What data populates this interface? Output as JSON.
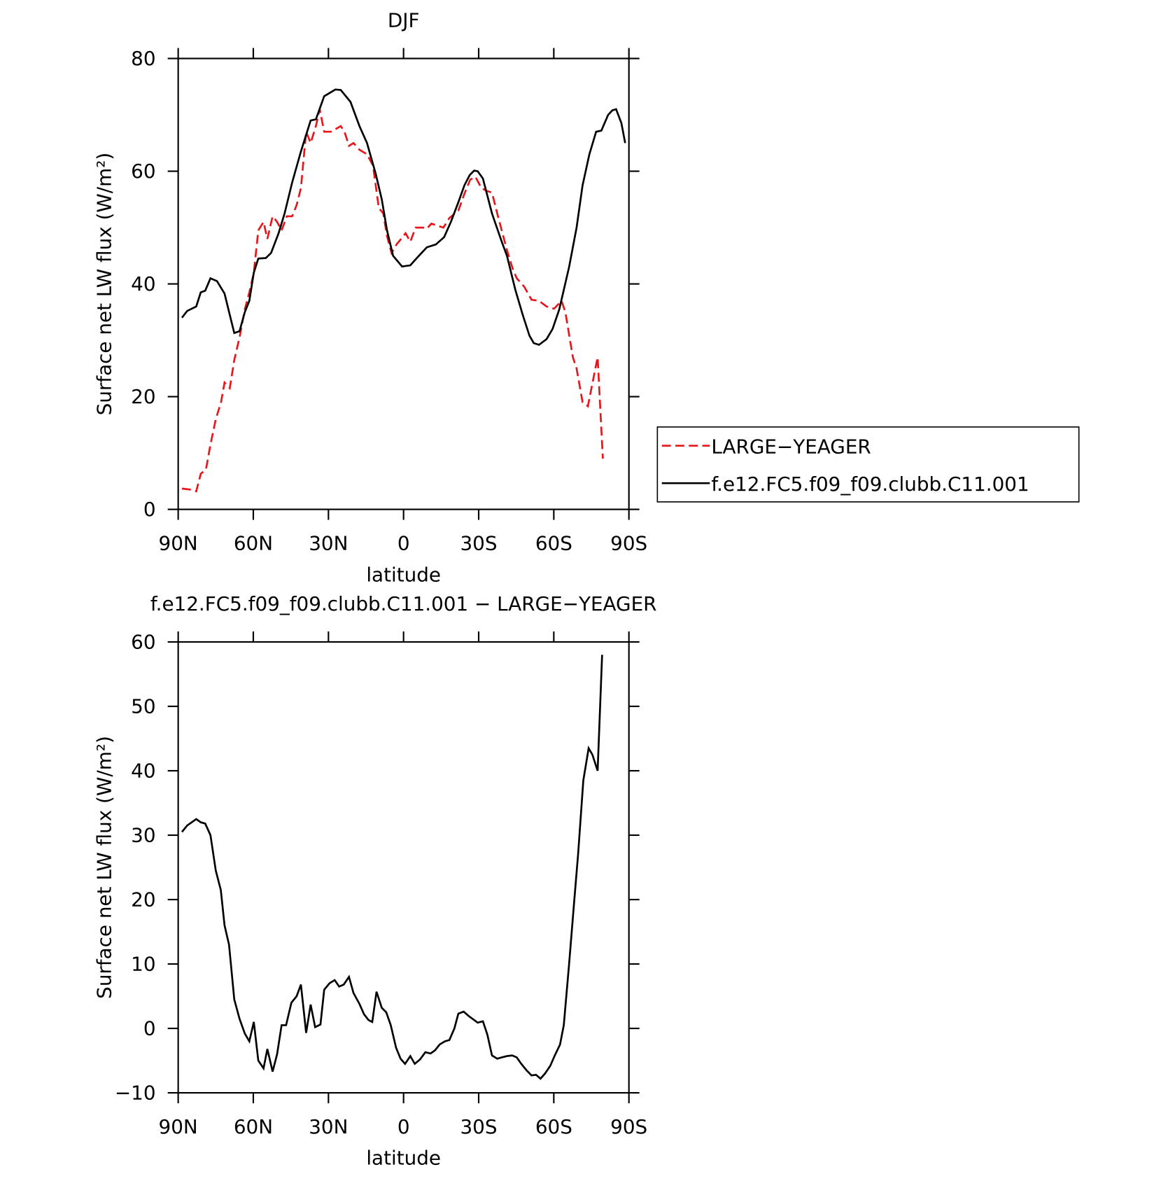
{
  "chart_data": [
    {
      "type": "line",
      "title": "DJF",
      "xlabel": "latitude",
      "ylabel": "Surface net LW flux (W/m²)",
      "xlim": [
        90,
        -90
      ],
      "xticks": [
        {
          "value": 90,
          "label": "90N"
        },
        {
          "value": 60,
          "label": "60N"
        },
        {
          "value": 30,
          "label": "30N"
        },
        0,
        {
          "value": -30,
          "label": "30S"
        },
        {
          "value": -60,
          "label": "60S"
        },
        {
          "value": -90,
          "label": "90S"
        }
      ],
      "ylim": [
        0,
        80
      ],
      "yticks": [
        0,
        20,
        40,
        60,
        80
      ],
      "legend": "right",
      "series": [
        {
          "name": "LARGE−YEAGER",
          "color": "#e8161b",
          "linestyle": "dashed",
          "x": [
            88.5,
            84.9,
            82.8,
            81.0,
            78.9,
            77.1,
            75.0,
            72.9,
            71.5,
            69.4,
            67.6,
            65.5,
            63.4,
            61.6,
            59.8,
            58.0,
            55.9,
            54.4,
            52.3,
            50.5,
            48.7,
            46.6,
            44.5,
            42.7,
            41.0,
            38.9,
            37.1,
            35.0,
            33.5,
            31.7,
            29.0,
            25.1,
            23.6,
            21.8,
            20.0,
            17.6,
            14.6,
            12.2,
            9.9,
            8.1,
            6.6,
            4.8,
            2.8,
            0.4,
            -0.8,
            -2.7,
            -4.8,
            -7.8,
            -9.3,
            -11.1,
            -13.8,
            -15.9,
            -18.3,
            -21.9,
            -24.3,
            -26.6,
            -28.7,
            -31.1,
            -33.2,
            -35.3,
            -37.7,
            -41.3,
            -43.7,
            -45.2,
            -48.2,
            -51.1,
            -54.1,
            -57.1,
            -60.1,
            -63.1,
            -64.6,
            -67.6,
            -69.1,
            -71.5,
            -73.6,
            -75.7,
            -77.5,
            -79.6
          ],
          "values": [
            3.7,
            3.5,
            3.2,
            6.3,
            7.1,
            11.5,
            16,
            19,
            22.5,
            21.5,
            26.5,
            30.5,
            35.5,
            38.5,
            42,
            49.5,
            51,
            48,
            52,
            51,
            49.5,
            52,
            52,
            54,
            57,
            67,
            65,
            68,
            71,
            67,
            67,
            68,
            67,
            64.5,
            65,
            63.8,
            63,
            61,
            53.5,
            52.5,
            48.5,
            45.5,
            47,
            48.3,
            49,
            47.5,
            50,
            50,
            49.8,
            50.7,
            50.3,
            50,
            51.7,
            53,
            56,
            58.5,
            59,
            57,
            56.5,
            56.2,
            52,
            46,
            42.5,
            41,
            39.5,
            37.2,
            37,
            36,
            35.6,
            37,
            35,
            27,
            25,
            19,
            18.3,
            23,
            27,
            9
          ]
        },
        {
          "name": "f.e12.FC5.f09_f09.clubb.C11.001",
          "color": "#000000",
          "linestyle": "solid",
          "x": [
            88.5,
            86.4,
            82.8,
            81.0,
            79.2,
            77.1,
            74.5,
            71.5,
            69.4,
            67.6,
            65.5,
            63.4,
            61.6,
            59.8,
            58.0,
            55.0,
            52.9,
            49.9,
            47.5,
            44.5,
            41.0,
            37.1,
            35.0,
            31.7,
            27.2,
            25.1,
            21.2,
            17.6,
            14.6,
            11.1,
            8.7,
            6.6,
            4.2,
            0.6,
            -2.7,
            -5.1,
            -9.3,
            -12.9,
            -16.2,
            -18.9,
            -21.9,
            -24.3,
            -26.4,
            -28.2,
            -29.6,
            -31.7,
            -35.3,
            -39.2,
            -41.3,
            -44.6,
            -47.6,
            -50.3,
            -52.0,
            -54.1,
            -57.1,
            -59.5,
            -62.2,
            -66.1,
            -69.1,
            -71.5,
            -74.2,
            -76.9,
            -79.0,
            -81.7,
            -83.4,
            -84.9,
            -87.0,
            -88.5
          ],
          "values": [
            34,
            35.2,
            36,
            38.5,
            38.8,
            41,
            40.5,
            38.3,
            34.5,
            31.3,
            31.6,
            35,
            37,
            42,
            44.5,
            44.6,
            45.5,
            49,
            52.5,
            58,
            63.5,
            69,
            69.2,
            73.3,
            74.5,
            74.4,
            72.3,
            68,
            65,
            59.5,
            55,
            49.5,
            45,
            43.1,
            43.3,
            44.5,
            46.5,
            47,
            48.3,
            51,
            54.5,
            57.5,
            59.3,
            60.1,
            60,
            58.7,
            52.5,
            47.5,
            45,
            39,
            34.5,
            30.8,
            29.5,
            29.2,
            30.2,
            32,
            35.5,
            43,
            50,
            57.5,
            63,
            67,
            67.2,
            70,
            70.8,
            71,
            68.5,
            65
          ]
        }
      ]
    },
    {
      "type": "line",
      "title": "f.e12.FC5.f09_f09.clubb.C11.001 − LARGE−YEAGER",
      "xlabel": "latitude",
      "ylabel": "Surface net LW flux (W/m²)",
      "xlim": [
        90,
        -90
      ],
      "xticks": [
        {
          "value": 90,
          "label": "90N"
        },
        {
          "value": 60,
          "label": "60N"
        },
        {
          "value": 30,
          "label": "30N"
        },
        0,
        {
          "value": -30,
          "label": "30S"
        },
        {
          "value": -60,
          "label": "60S"
        },
        {
          "value": -90,
          "label": "90S"
        }
      ],
      "ylim": [
        -10,
        60
      ],
      "yticks": [
        {
          "value": -10,
          "label": "−10"
        },
        0,
        10,
        20,
        30,
        40,
        50,
        60
      ],
      "series": [
        {
          "color": "#000000",
          "linestyle": "solid",
          "x": [
            88.5,
            86.4,
            82.8,
            81.0,
            79.2,
            77.1,
            75.0,
            73.0,
            71.5,
            69.7,
            67.6,
            65.5,
            63.4,
            61.6,
            59.8,
            58.0,
            55.9,
            54.4,
            52.3,
            50.5,
            48.7,
            46.9,
            44.8,
            42.7,
            41.0,
            38.9,
            37.1,
            35.3,
            33.2,
            31.7,
            29.6,
            27.5,
            25.7,
            23.9,
            21.8,
            20.0,
            17.6,
            15.8,
            14.0,
            12.5,
            10.8,
            8.7,
            6.9,
            5.1,
            3.0,
            1.2,
            -0.6,
            -2.7,
            -4.5,
            -6.6,
            -8.7,
            -10.8,
            -12.6,
            -14.4,
            -16.5,
            -18.3,
            -20.3,
            -21.9,
            -24.0,
            -26.1,
            -28.2,
            -29.6,
            -31.7,
            -33.5,
            -35.3,
            -37.4,
            -39.2,
            -41.3,
            -43.4,
            -45.2,
            -47.0,
            -49.1,
            -51.1,
            -52.9,
            -54.7,
            -56.5,
            -58.6,
            -60.4,
            -62.5,
            -64.0,
            -66.1,
            -68.2,
            -69.7,
            -71.8,
            -73.9,
            -75.4,
            -77.5,
            -79.3
          ],
          "values": [
            30.5,
            31.5,
            32.5,
            32,
            31.8,
            30,
            24.5,
            21.5,
            16,
            13,
            4.5,
            1.5,
            -0.8,
            -2,
            1,
            -5,
            -6.2,
            -3.2,
            -6.7,
            -4,
            0.5,
            0.5,
            4,
            5,
            6.8,
            -0.7,
            3.7,
            0.2,
            0.6,
            6,
            7,
            7.5,
            6.5,
            6.8,
            8,
            5.5,
            3.8,
            2.2,
            1.3,
            1,
            5.7,
            3.2,
            2.5,
            0.5,
            -3,
            -4.7,
            -5.5,
            -4.3,
            -5.5,
            -4.8,
            -3.7,
            -3.9,
            -3.4,
            -2.5,
            -2,
            -1.8,
            0,
            2.3,
            2.6,
            1.9,
            1.3,
            0.9,
            1.1,
            -1,
            -4.2,
            -4.7,
            -4.5,
            -4.3,
            -4.2,
            -4.5,
            -5.5,
            -6.5,
            -7.3,
            -7.2,
            -7.8,
            -7,
            -5.8,
            -4.2,
            -2.5,
            0.5,
            10,
            20,
            27,
            38.5,
            43.5,
            42.5,
            40,
            58
          ]
        }
      ]
    }
  ]
}
